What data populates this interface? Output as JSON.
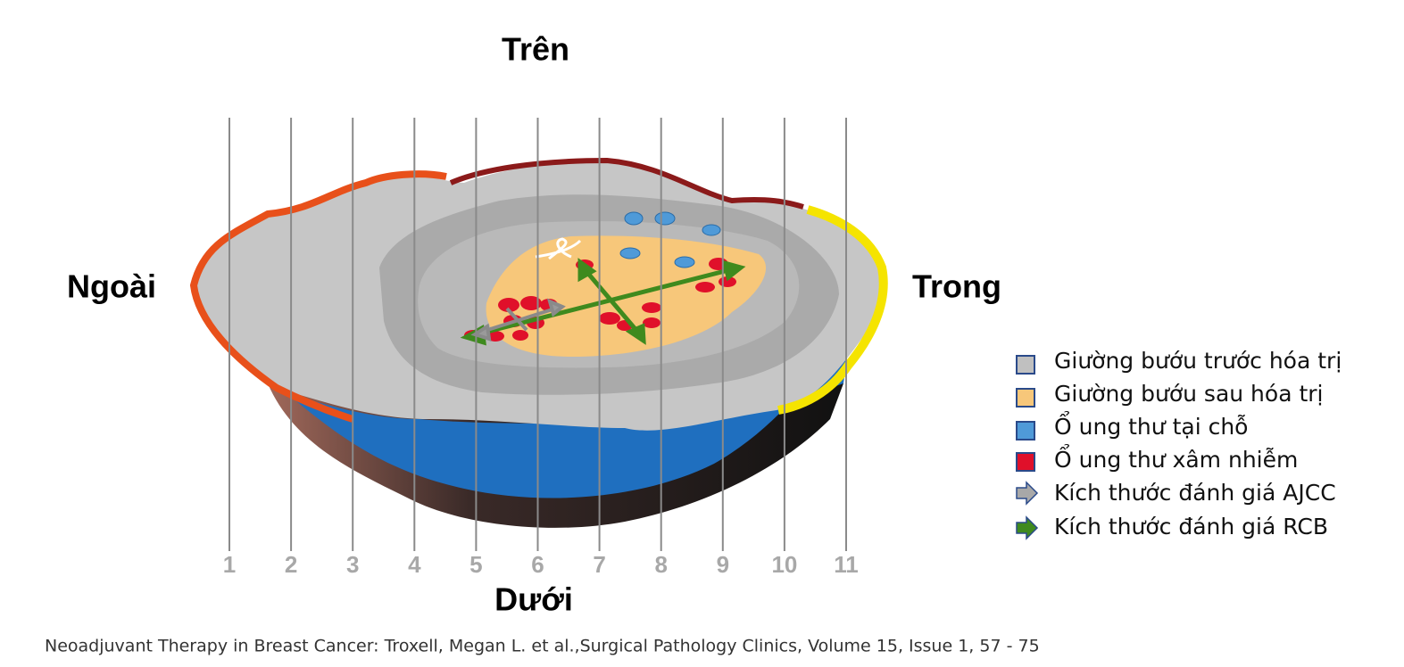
{
  "orientation": {
    "top": "Trên",
    "left": "Ngoài",
    "right": "Trong",
    "bottom": "Dưới"
  },
  "slices": [
    1,
    2,
    3,
    4,
    5,
    6,
    7,
    8,
    9,
    10,
    11
  ],
  "legend": [
    "Giường bướu trước hóa trị",
    "Giường bướu sau hóa trị",
    "Ổ ung thư tại chỗ",
    "Ổ ung thư xâm nhiễm",
    "Kích thước đánh giá AJCC",
    "Kích thước đánh giá RCB"
  ],
  "citation": "Neoadjuvant Therapy in Breast Cancer: Troxell, Megan L. et al.,Surgical Pathology Clinics, Volume 15, Issue 1, 57 - 75"
}
